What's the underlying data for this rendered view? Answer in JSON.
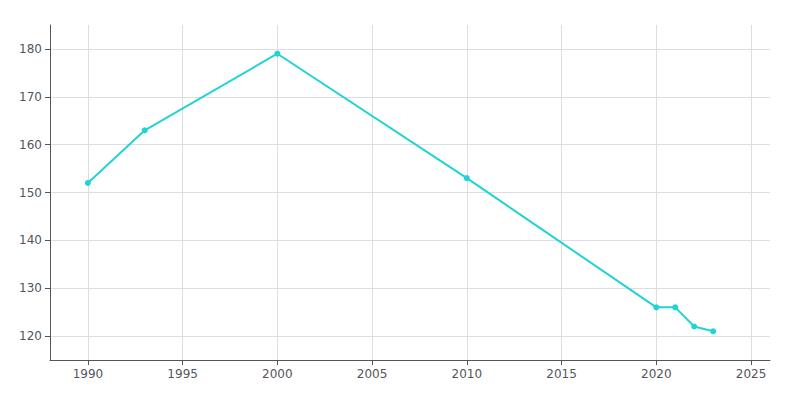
{
  "chart_data": {
    "type": "line",
    "x": [
      1990,
      1993,
      2000,
      2010,
      2020,
      2021,
      2022,
      2023
    ],
    "values": [
      152,
      163,
      179,
      153,
      126,
      126,
      122,
      121
    ],
    "color": "#22d3d3",
    "marker": "circle",
    "xlim": [
      1988,
      2026
    ],
    "ylim": [
      115,
      185
    ],
    "xticks": [
      1990,
      1995,
      2000,
      2005,
      2010,
      2015,
      2020,
      2025
    ],
    "yticks": [
      120,
      130,
      140,
      150,
      160,
      170,
      180
    ],
    "grid": true
  }
}
